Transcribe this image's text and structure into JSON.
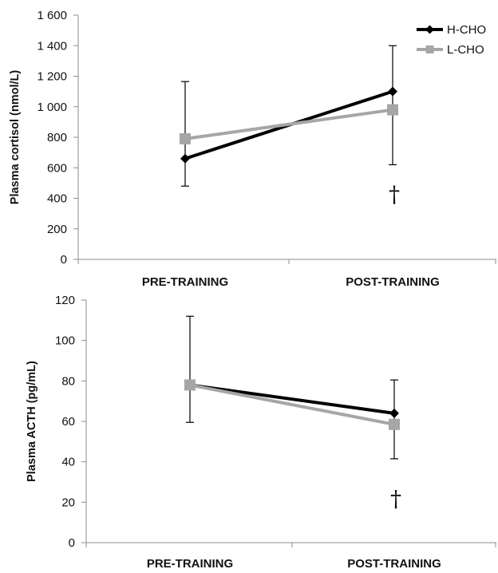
{
  "legend": {
    "entries": [
      {
        "name": "H-CHO",
        "color": "#000000",
        "marker": "diamond"
      },
      {
        "name": "L-CHO",
        "color": "#a6a6a6",
        "marker": "square"
      }
    ]
  },
  "chart_data": [
    {
      "type": "line",
      "ylabel": "Plasma cortisol (nmol/L)",
      "categories": [
        "PRE-TRAINING",
        "POST-TRAINING"
      ],
      "ylim": [
        0,
        1600
      ],
      "y_ticks": [
        0,
        200,
        400,
        600,
        800,
        1000,
        1200,
        1400,
        1600
      ],
      "y_tick_labels": [
        "0",
        "200",
        "400",
        "600",
        "800",
        "1 000",
        "1 200",
        "1 400",
        "1 600"
      ],
      "grid": false,
      "legend_position": "top-right",
      "series": [
        {
          "name": "H-CHO",
          "color": "#000000",
          "marker": "diamond",
          "values": [
            660,
            1100
          ]
        },
        {
          "name": "L-CHO",
          "color": "#a6a6a6",
          "marker": "square",
          "values": [
            790,
            980
          ]
        }
      ],
      "error_bars": [
        {
          "category": "PRE-TRAINING",
          "low": 480,
          "high": 1165
        },
        {
          "category": "POST-TRAINING",
          "low": 620,
          "high": 1400
        }
      ],
      "annotations": [
        {
          "text": "†",
          "category": "POST-TRAINING",
          "y": 430
        }
      ]
    },
    {
      "type": "line",
      "ylabel": "Plasma ACTH (pg/mL)",
      "categories": [
        "PRE-TRAINING",
        "POST-TRAINING"
      ],
      "ylim": [
        0,
        120
      ],
      "y_ticks": [
        0,
        20,
        40,
        60,
        80,
        100,
        120
      ],
      "y_tick_labels": [
        "0",
        "20",
        "40",
        "60",
        "80",
        "100",
        "120"
      ],
      "grid": false,
      "series": [
        {
          "name": "H-CHO",
          "color": "#000000",
          "marker": "diamond",
          "values": [
            78,
            64
          ]
        },
        {
          "name": "L-CHO",
          "color": "#a6a6a6",
          "marker": "square",
          "values": [
            78,
            58.5
          ]
        }
      ],
      "error_bars": [
        {
          "category": "PRE-TRAINING",
          "low": 59.5,
          "high": 112
        },
        {
          "category": "POST-TRAINING",
          "low": 41.5,
          "high": 80.5
        }
      ],
      "annotations": [
        {
          "text": "†",
          "category": "POST-TRAINING",
          "y": 22
        }
      ]
    }
  ]
}
